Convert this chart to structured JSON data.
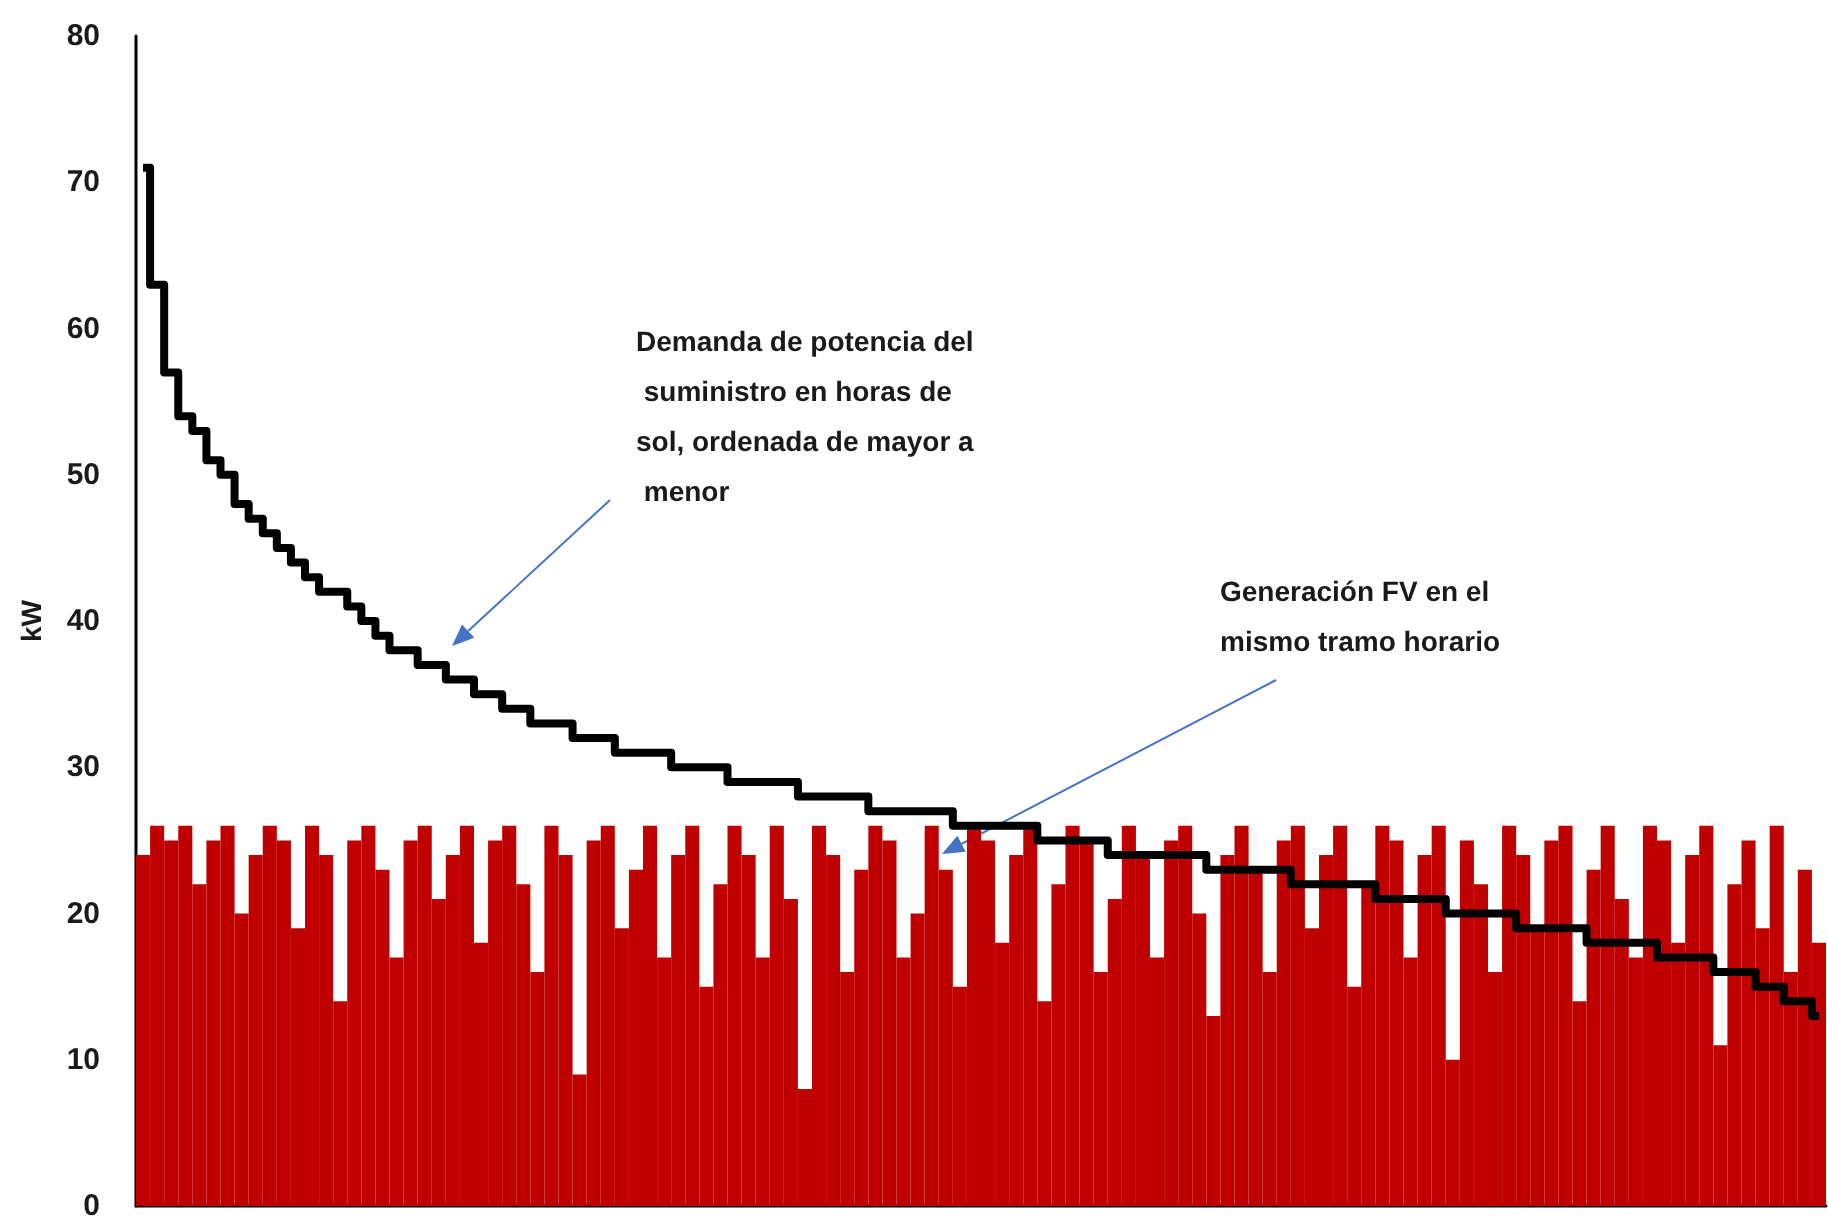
{
  "chart_data": {
    "type": "bar",
    "ylabel": "kW",
    "ylim": [
      0,
      80
    ],
    "yticks": [
      0,
      10,
      20,
      30,
      40,
      50,
      60,
      70,
      80
    ],
    "grid": false,
    "annotations": [
      "Demanda de potencia del suministro en horas de sol, ordenada de mayor a menor",
      "Generación FV en el mismo tramo horario"
    ],
    "categories": [
      null,
      null,
      null,
      null,
      null,
      null,
      null,
      null,
      null,
      null,
      null,
      null,
      null,
      null,
      null,
      null,
      null,
      null,
      null,
      null,
      null,
      null,
      null,
      null,
      null,
      null,
      null,
      null,
      null,
      null,
      null,
      null,
      null,
      null,
      null,
      null,
      null,
      null,
      null,
      null,
      null,
      null,
      null,
      null,
      null,
      null,
      null,
      null,
      null,
      null,
      null,
      null,
      null,
      null,
      null,
      null,
      null,
      null,
      null,
      null,
      null,
      null,
      null,
      null,
      null,
      null,
      null,
      null,
      null,
      null,
      null,
      null,
      null,
      null,
      null,
      null,
      null,
      null,
      null,
      null,
      null,
      null,
      null,
      null,
      null,
      null,
      null,
      null,
      null,
      null,
      null,
      null,
      null,
      null,
      null,
      null,
      null,
      null,
      null,
      null,
      null,
      null,
      null,
      null,
      null,
      null,
      null,
      null,
      null,
      null,
      null,
      null,
      null,
      null,
      null,
      null,
      null,
      null,
      null,
      null
    ],
    "series": [
      {
        "color": "#c00000",
        "values": [
          24,
          26,
          25,
          26,
          22,
          25,
          26,
          20,
          24,
          26,
          25,
          19,
          26,
          24,
          14,
          25,
          26,
          23,
          17,
          25,
          26,
          21,
          24,
          26,
          18,
          25,
          26,
          22,
          16,
          26,
          24,
          9,
          25,
          26,
          19,
          23,
          26,
          17,
          24,
          26,
          15,
          22,
          26,
          24,
          17,
          26,
          21,
          8,
          26,
          24,
          16,
          23,
          26,
          25,
          17,
          20,
          26,
          23,
          15,
          26,
          25,
          18,
          24,
          26,
          14,
          22,
          26,
          25,
          16,
          21,
          26,
          24,
          17,
          25,
          26,
          20,
          13,
          24,
          26,
          23,
          16,
          25,
          26,
          19,
          24,
          26,
          15,
          22,
          26,
          25,
          17,
          24,
          26,
          10,
          25,
          22,
          16,
          26,
          24,
          19,
          25,
          26,
          14,
          23,
          26,
          21,
          17,
          26,
          25,
          18,
          24,
          26,
          11,
          22,
          25,
          19,
          26,
          16,
          23,
          18
        ]
      },
      {
        "type": "step",
        "color": "#000000",
        "values": [
          71,
          63,
          57,
          54,
          53,
          51,
          50,
          48,
          47,
          46,
          45,
          44,
          43,
          42,
          42,
          41,
          40,
          39,
          38,
          38,
          37,
          37,
          36,
          36,
          35,
          35,
          34,
          34,
          33,
          33,
          33,
          32,
          32,
          32,
          31,
          31,
          31,
          31,
          30,
          30,
          30,
          30,
          29,
          29,
          29,
          29,
          29,
          28,
          28,
          28,
          28,
          28,
          27,
          27,
          27,
          27,
          27,
          27,
          26,
          26,
          26,
          26,
          26,
          26,
          25,
          25,
          25,
          25,
          25,
          24,
          24,
          24,
          24,
          24,
          24,
          24,
          23,
          23,
          23,
          23,
          23,
          23,
          22,
          22,
          22,
          22,
          22,
          22,
          21,
          21,
          21,
          21,
          21,
          20,
          20,
          20,
          20,
          20,
          19,
          19,
          19,
          19,
          19,
          18,
          18,
          18,
          18,
          18,
          17,
          17,
          17,
          17,
          16,
          16,
          16,
          15,
          15,
          14,
          14,
          13
        ]
      }
    ]
  }
}
